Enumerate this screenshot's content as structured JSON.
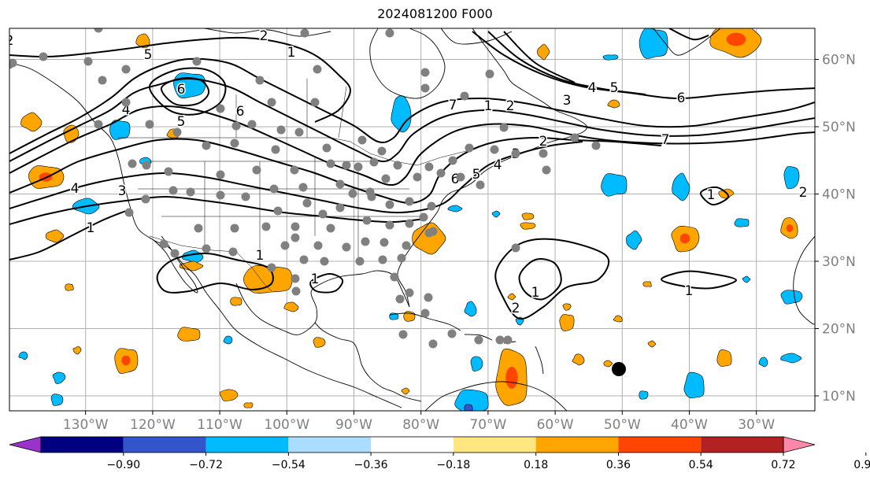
{
  "title": "2024081200 F000",
  "lon_ticks": [
    {
      "lon": -130,
      "label": "130°W"
    },
    {
      "lon": -120,
      "label": "120°W"
    },
    {
      "lon": -110,
      "label": "110°W"
    },
    {
      "lon": -100,
      "label": "100°W"
    },
    {
      "lon": -90,
      "label": "90°W"
    },
    {
      "lon": -80,
      "label": "80°W"
    },
    {
      "lon": -70,
      "label": "70°W"
    },
    {
      "lon": -60,
      "label": "60°W"
    },
    {
      "lon": -50,
      "label": "50°W"
    },
    {
      "lon": -40,
      "label": "40°W"
    },
    {
      "lon": -30,
      "label": "30°W"
    }
  ],
  "lat_ticks": [
    {
      "lat": 60,
      "label": "60°N"
    },
    {
      "lat": 50,
      "label": "50°N"
    },
    {
      "lat": 40,
      "label": "40°N"
    },
    {
      "lat": 30,
      "label": "30°N"
    },
    {
      "lat": 20,
      "label": "20°N"
    },
    {
      "lat": 10,
      "label": "10°N"
    }
  ],
  "colorbar": {
    "colors": [
      "#9933cc",
      "#000080",
      "#3355cc",
      "#00bbff",
      "#aaddff",
      "#ffffff",
      "#ffe680",
      "#ffa500",
      "#ff4500",
      "#b22222",
      "#ff88aa"
    ],
    "labels": [
      "−0.90",
      "−0.72",
      "−0.54",
      "−0.36",
      "−0.18",
      "0.18",
      "0.36",
      "0.54",
      "0.72",
      "0.90"
    ]
  },
  "contour_labels": [
    "2",
    "1",
    "2",
    "3",
    "4",
    "5",
    "6",
    "7",
    "1",
    "2",
    "3",
    "4",
    "5",
    "6",
    "7",
    "6",
    "5",
    "4",
    "3",
    "2",
    "1",
    "6",
    "5",
    "4",
    "2",
    "1",
    "1",
    "1",
    "1",
    "2",
    "1"
  ],
  "colors": {
    "positive": "#ffa500",
    "strong_positive": "#ff4500",
    "negative": "#00bbff",
    "stations": "#808080",
    "marker": "#000000",
    "grid": "#b0b0b0",
    "tick_label": "#808080"
  }
}
